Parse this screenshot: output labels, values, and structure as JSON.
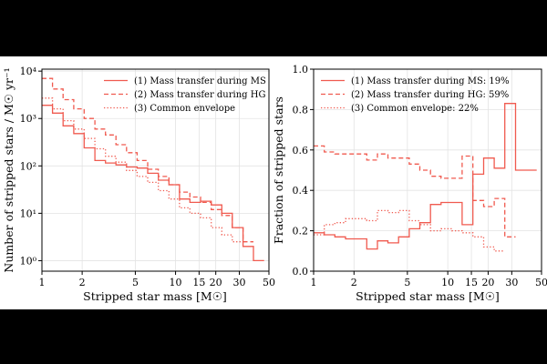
{
  "colors": {
    "series": "#f05a4f",
    "background": "#ffffff",
    "frame": "#000000"
  },
  "chart_data": [
    {
      "type": "line",
      "step": "post",
      "xscale": "log",
      "yscale": "log",
      "xlim": [
        1,
        50
      ],
      "ylim": [
        0.6,
        11000
      ],
      "grid": true,
      "legend_position": "top-right",
      "xlabel": "Stripped star mass [M☉]",
      "ylabel": "Number of stripped stars / M☉ yr⁻¹",
      "xticks": [
        {
          "value": 1,
          "label": "1"
        },
        {
          "value": 2,
          "label": "2"
        },
        {
          "value": 5,
          "label": "5"
        },
        {
          "value": 10,
          "label": "10"
        },
        {
          "value": 15,
          "label": "15"
        },
        {
          "value": 20,
          "label": "20"
        },
        {
          "value": 30,
          "label": "30"
        },
        {
          "value": 50,
          "label": "50"
        }
      ],
      "yticks": [
        {
          "value": 1,
          "label": "10⁰"
        },
        {
          "value": 10,
          "label": "10¹"
        },
        {
          "value": 100,
          "label": "10²"
        },
        {
          "value": 1000,
          "label": "10³"
        },
        {
          "value": 10000,
          "label": "10⁴"
        }
      ],
      "bin_edges": [
        1,
        1.2,
        1.44,
        1.73,
        2.07,
        2.49,
        2.99,
        3.58,
        4.3,
        5.16,
        6.19,
        7.43,
        8.92,
        10.7,
        12.8,
        15.4,
        18.5,
        22.2,
        26.6,
        32,
        38.3,
        46
      ],
      "series": [
        {
          "name": "(1) Mass transfer during MS",
          "style": "solid",
          "values": [
            1900,
            1300,
            700,
            480,
            240,
            130,
            115,
            105,
            95,
            90,
            70,
            50,
            40,
            20,
            17,
            18,
            15,
            10,
            5,
            2,
            1
          ]
        },
        {
          "name": "(2) Mass transfer during HG",
          "style": "dashed",
          "values": [
            7000,
            4200,
            2500,
            1600,
            1000,
            600,
            450,
            280,
            190,
            130,
            85,
            60,
            40,
            28,
            22,
            17,
            12,
            9,
            5,
            2.5
          ]
        },
        {
          "name": "(3) Common envelope",
          "style": "dotted",
          "values": [
            2700,
            1600,
            900,
            600,
            380,
            230,
            160,
            120,
            80,
            60,
            45,
            30,
            20,
            13,
            10,
            8,
            5,
            3.5,
            2.5
          ]
        }
      ]
    },
    {
      "type": "line",
      "step": "post",
      "xscale": "log",
      "yscale": "linear",
      "xlim": [
        1,
        50
      ],
      "ylim": [
        0,
        1
      ],
      "grid": true,
      "legend_position": "top-left",
      "xlabel": "Stripped star mass [M☉]",
      "ylabel": "Fraction of stripped stars",
      "xticks": [
        {
          "value": 1,
          "label": "1"
        },
        {
          "value": 2,
          "label": "2"
        },
        {
          "value": 5,
          "label": "5"
        },
        {
          "value": 10,
          "label": "10"
        },
        {
          "value": 15,
          "label": "15"
        },
        {
          "value": 20,
          "label": "20"
        },
        {
          "value": 30,
          "label": "30"
        },
        {
          "value": 50,
          "label": "50"
        }
      ],
      "yticks": [
        {
          "value": 0,
          "label": "0.0"
        },
        {
          "value": 0.2,
          "label": "0.2"
        },
        {
          "value": 0.4,
          "label": "0.4"
        },
        {
          "value": 0.6,
          "label": "0.6"
        },
        {
          "value": 0.8,
          "label": "0.8"
        },
        {
          "value": 1,
          "label": "1.0"
        }
      ],
      "bin_edges": [
        1,
        1.2,
        1.44,
        1.73,
        2.07,
        2.49,
        2.99,
        3.58,
        4.3,
        5.16,
        6.19,
        7.43,
        8.92,
        10.7,
        12.8,
        15.4,
        18.5,
        22.2,
        26.6,
        32,
        38.3,
        46
      ],
      "series": [
        {
          "name": "(1) Mass transfer during MS: 19%",
          "style": "solid",
          "values": [
            0.19,
            0.18,
            0.17,
            0.16,
            0.16,
            0.11,
            0.15,
            0.14,
            0.17,
            0.21,
            0.24,
            0.33,
            0.34,
            0.34,
            0.23,
            0.48,
            0.56,
            0.51,
            0.83,
            0.5,
            0.5
          ]
        },
        {
          "name": "(2) Mass transfer during HG: 59%",
          "style": "dashed",
          "values": [
            0.62,
            0.59,
            0.58,
            0.58,
            0.58,
            0.55,
            0.58,
            0.56,
            0.56,
            0.53,
            0.5,
            0.47,
            0.46,
            0.46,
            0.57,
            0.35,
            0.32,
            0.36,
            0.17
          ]
        },
        {
          "name": "(3) Common envelope: 22%",
          "style": "dotted",
          "values": [
            0.18,
            0.23,
            0.24,
            0.26,
            0.26,
            0.25,
            0.3,
            0.29,
            0.3,
            0.25,
            0.23,
            0.2,
            0.21,
            0.2,
            0.19,
            0.17,
            0.12,
            0.1
          ]
        }
      ]
    }
  ]
}
